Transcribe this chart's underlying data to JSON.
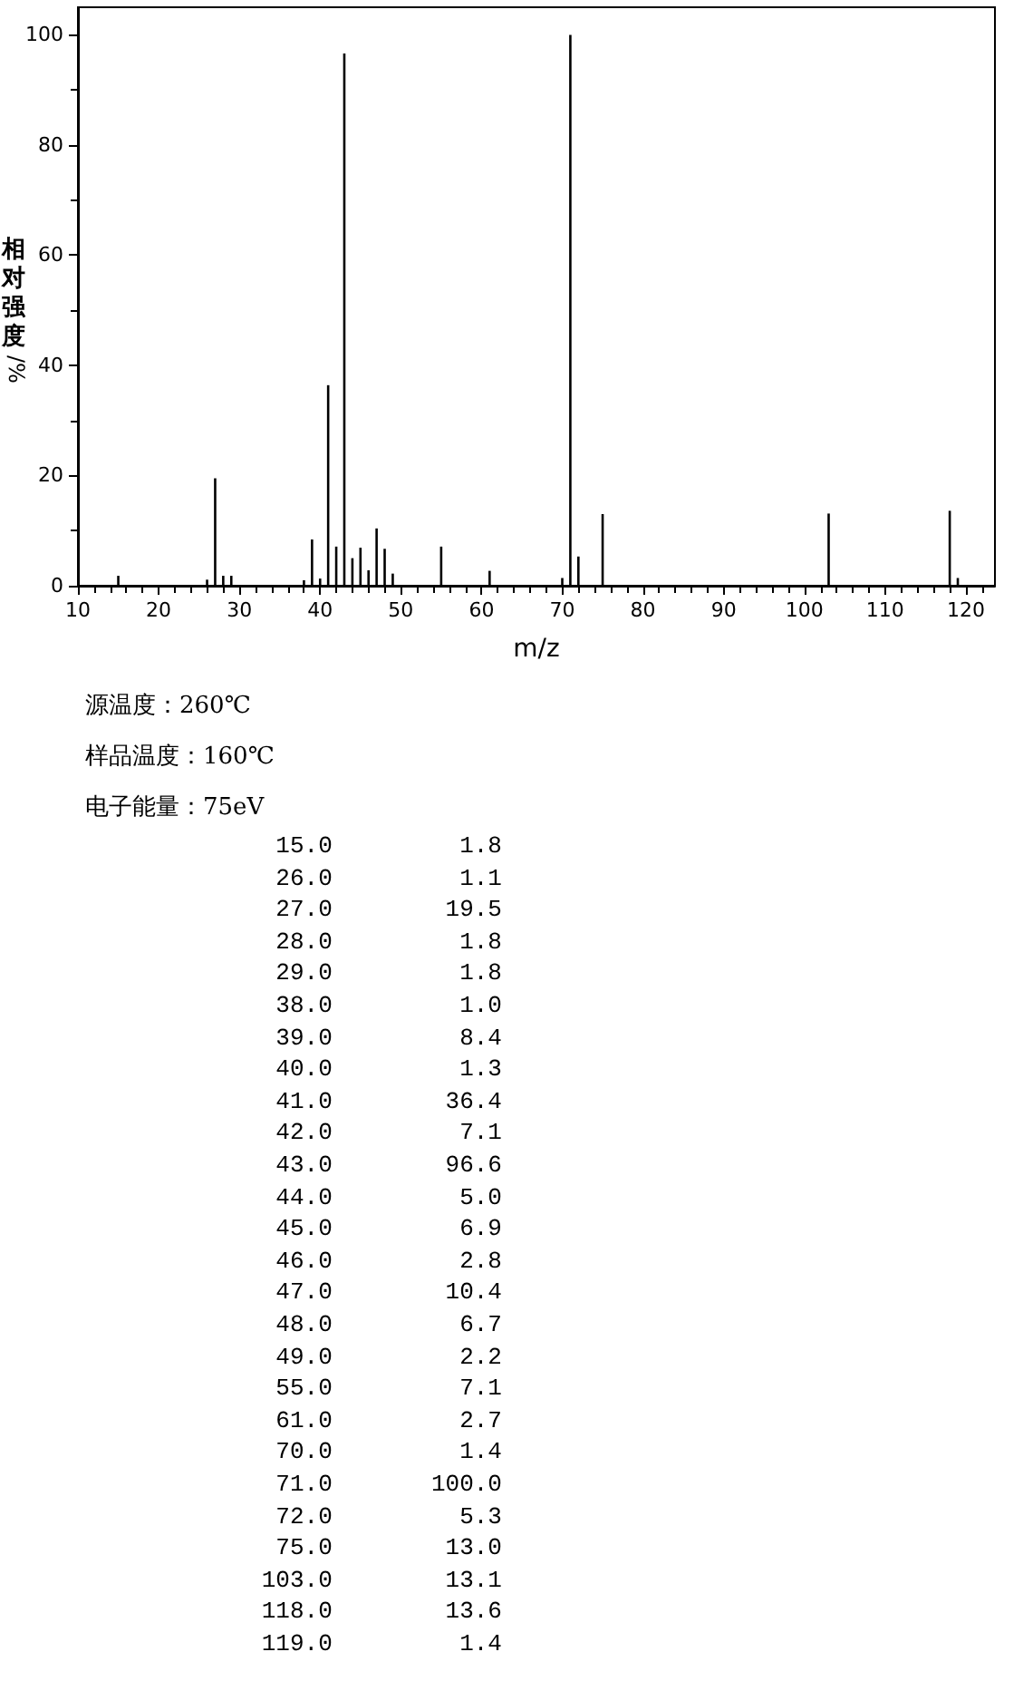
{
  "chart_data": [
    {
      "type": "bar",
      "xlabel": "m/z",
      "ylabel": "相对强度/%",
      "x": [
        15,
        26,
        27,
        28,
        29,
        38,
        39,
        40,
        41,
        42,
        43,
        44,
        45,
        46,
        47,
        48,
        49,
        55,
        61,
        70,
        71,
        72,
        75,
        103,
        118,
        119
      ],
      "values": [
        1.8,
        1.1,
        19.5,
        1.8,
        1.8,
        1.0,
        8.4,
        1.3,
        36.4,
        7.1,
        96.6,
        5.0,
        6.9,
        2.8,
        10.4,
        6.7,
        2.2,
        7.1,
        2.7,
        1.4,
        100.0,
        5.3,
        13.0,
        13.1,
        13.6,
        1.4
      ],
      "color": "#000000",
      "xlim": [
        10,
        123.6
      ],
      "xticks": [
        10,
        20,
        30,
        40,
        50,
        60,
        70,
        80,
        90,
        100,
        110,
        120
      ],
      "ylim": [
        0,
        105
      ],
      "yticks": [
        0,
        20,
        40,
        60,
        80,
        100
      ],
      "grid": false
    },
    {
      "type": "other",
      "annotations": [
        "源温度：260℃",
        "样品温度：160℃",
        "电子能量：75eV"
      ],
      "categories": [
        "15.0",
        "26.0",
        "27.0",
        "28.0",
        "29.0",
        "38.0",
        "39.0",
        "40.0",
        "41.0",
        "42.0",
        "43.0",
        "44.0",
        "45.0",
        "46.0",
        "47.0",
        "48.0",
        "49.0",
        "55.0",
        "61.0",
        "70.0",
        "71.0",
        "72.0",
        "75.0",
        "103.0",
        "118.0",
        "119.0"
      ],
      "value_labels": [
        "1.8",
        "1.1",
        "19.5",
        "1.8",
        "1.8",
        "1.0",
        "8.4",
        "1.3",
        "36.4",
        "7.1",
        "96.6",
        "5.0",
        "6.9",
        "2.8",
        "10.4",
        "6.7",
        "2.2",
        "7.1",
        "2.7",
        "1.4",
        "100.0",
        "5.3",
        "13.0",
        "13.1",
        "13.6",
        "1.4"
      ]
    }
  ]
}
